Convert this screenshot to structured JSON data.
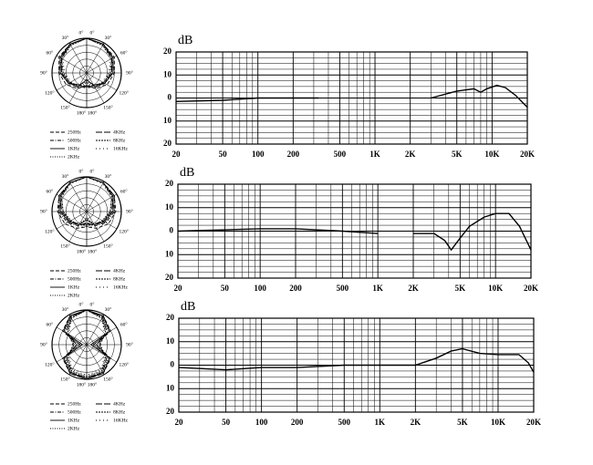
{
  "chart_data": [
    {
      "type": "polar",
      "angles": [
        {
          "value": 0,
          "label": "0°"
        },
        {
          "value": 30,
          "label": "30°"
        },
        {
          "value": 60,
          "label": "60°"
        },
        {
          "value": 90,
          "label": "90°"
        },
        {
          "value": 120,
          "label": "120°"
        },
        {
          "value": 150,
          "label": "150°"
        },
        {
          "value": 180,
          "label": "180°"
        }
      ],
      "rlim": [
        -25,
        0
      ],
      "rgrid": [
        -20,
        -15,
        -10,
        -5,
        0
      ],
      "color": "#000000",
      "series": [
        {
          "name": "250Hz",
          "dash": "dashed",
          "values": [
            0,
            -1,
            -2,
            -5,
            -8,
            -12,
            -16
          ]
        },
        {
          "name": "500Hz",
          "dash": "dashdot",
          "values": [
            0,
            -1,
            -3,
            -6,
            -10,
            -14,
            -18
          ]
        },
        {
          "name": "1KHz",
          "dash": "solid",
          "values": [
            0,
            -1,
            -3,
            -6,
            -10,
            -15,
            -20
          ]
        },
        {
          "name": "2KHz",
          "dash": "dotted",
          "values": [
            0,
            -1,
            -3,
            -7,
            -11,
            -15,
            -19
          ]
        },
        {
          "name": "4KHz",
          "dash": "longdash",
          "values": [
            0,
            -1,
            -4,
            -7,
            -10,
            -13,
            -15
          ]
        },
        {
          "name": "8KHz",
          "dash": "dense",
          "values": [
            0,
            -2,
            -4,
            -8,
            -11,
            -14,
            -16
          ]
        },
        {
          "name": "16KHz",
          "dash": "sparse",
          "values": [
            0,
            -2,
            -5,
            -9,
            -12,
            -13,
            -14
          ]
        }
      ]
    },
    {
      "type": "line",
      "ylabel": "dB",
      "xlog": true,
      "xlim": [
        20,
        20000
      ],
      "ylim": [
        -20,
        20
      ],
      "xticks": [
        20,
        50,
        100,
        200,
        500,
        {
          "value": 1000,
          "label": "1K"
        },
        {
          "value": 2000,
          "label": "2K"
        },
        {
          "value": 5000,
          "label": "5K"
        },
        {
          "value": 10000,
          "label": "10K"
        },
        {
          "value": 20000,
          "label": "20K"
        }
      ],
      "yticks": [
        20,
        10,
        0,
        {
          "value": -10,
          "label": "10"
        },
        {
          "value": -20,
          "label": "20"
        }
      ],
      "xgrid": [
        30,
        40,
        60,
        70,
        80,
        90,
        300,
        400,
        600,
        700,
        800,
        900,
        3000,
        4000,
        6000,
        7000,
        8000,
        9000
      ],
      "ygrid": [
        17.5,
        15,
        12.5,
        7.5,
        5,
        2.5,
        -2.5,
        -5,
        -7.5,
        -12.5,
        -15,
        -17.5
      ],
      "series": [
        {
          "color": "#000000",
          "x": [
            20,
            50,
            100,
            200,
            330,
            1000,
            3000,
            5000,
            7000,
            8000,
            9000,
            11000,
            13000,
            16000,
            20000
          ],
          "values": [
            -1.5,
            -1,
            0,
            0,
            0,
            null,
            0,
            3,
            4,
            2.5,
            4,
            5.5,
            4.5,
            1,
            -4
          ]
        }
      ]
    },
    {
      "type": "polar",
      "angles": [
        {
          "value": 0,
          "label": "0°"
        },
        {
          "value": 30,
          "label": "30°"
        },
        {
          "value": 60,
          "label": "60°"
        },
        {
          "value": 90,
          "label": "90°"
        },
        {
          "value": 120,
          "label": "120°"
        },
        {
          "value": 150,
          "label": "150°"
        },
        {
          "value": 180,
          "label": "180°"
        }
      ],
      "rlim": [
        -25,
        0
      ],
      "rgrid": [
        -20,
        -15,
        -10,
        -5,
        0
      ],
      "color": "#000000",
      "series": [
        {
          "name": "250Hz",
          "dash": "dashed",
          "values": [
            0,
            -1,
            -2,
            -4,
            -7,
            -11,
            -14
          ]
        },
        {
          "name": "500Hz",
          "dash": "dashdot",
          "values": [
            0,
            -1,
            -2,
            -5,
            -9,
            -13,
            -17
          ]
        },
        {
          "name": "1KHz",
          "dash": "solid",
          "values": [
            0,
            -1,
            -3,
            -6,
            -10,
            -14,
            -19
          ]
        },
        {
          "name": "2KHz",
          "dash": "dotted",
          "values": [
            0,
            -1,
            -3,
            -6,
            -11,
            -15,
            -20
          ]
        },
        {
          "name": "4KHz",
          "dash": "longdash",
          "values": [
            0,
            -1,
            -3,
            -7,
            -11,
            -14,
            -16
          ]
        },
        {
          "name": "8KHz",
          "dash": "dense",
          "values": [
            0,
            -1,
            -4,
            -8,
            -12,
            -14,
            -15
          ]
        },
        {
          "name": "16KHz",
          "dash": "sparse",
          "values": [
            0,
            -2,
            -4,
            -8,
            -11,
            -13,
            -14
          ]
        }
      ]
    },
    {
      "type": "line",
      "ylabel": "dB",
      "xlog": true,
      "xlim": [
        20,
        20000
      ],
      "ylim": [
        -20,
        20
      ],
      "xticks": [
        20,
        50,
        100,
        200,
        500,
        {
          "value": 1000,
          "label": "1K"
        },
        {
          "value": 2000,
          "label": "2K"
        },
        {
          "value": 5000,
          "label": "5K"
        },
        {
          "value": 10000,
          "label": "10K"
        },
        {
          "value": 20000,
          "label": "20K"
        }
      ],
      "yticks": [
        20,
        10,
        0,
        {
          "value": -10,
          "label": "10"
        },
        {
          "value": -20,
          "label": "20"
        }
      ],
      "xgrid": [
        30,
        40,
        60,
        70,
        80,
        90,
        300,
        400,
        600,
        700,
        800,
        900,
        3000,
        4000,
        6000,
        7000,
        8000,
        9000
      ],
      "ygrid": [
        17.5,
        15,
        12.5,
        7.5,
        5,
        2.5,
        -2.5,
        -5,
        -7.5,
        -12.5,
        -15,
        -17.5
      ],
      "series": [
        {
          "color": "#000000",
          "x": [
            20,
            100,
            200,
            500,
            1000,
            1500,
            2000,
            3000,
            3700,
            4200,
            5000,
            6000,
            8000,
            10000,
            13000,
            16000,
            20000
          ],
          "values": [
            0,
            1,
            1,
            0,
            -1,
            null,
            -1,
            -1,
            -4,
            -8,
            -3,
            2,
            6,
            7.5,
            7.5,
            2,
            -8
          ]
        }
      ]
    },
    {
      "type": "polar",
      "angles": [
        {
          "value": 0,
          "label": "0°"
        },
        {
          "value": 30,
          "label": "30°"
        },
        {
          "value": 60,
          "label": "60°"
        },
        {
          "value": 90,
          "label": "90°"
        },
        {
          "value": 120,
          "label": "120°"
        },
        {
          "value": 150,
          "label": "150°"
        },
        {
          "value": 180,
          "label": "180°"
        }
      ],
      "rlim": [
        -25,
        0
      ],
      "rgrid": [
        -20,
        -15,
        -10,
        -5,
        0
      ],
      "color": "#000000",
      "series": [
        {
          "name": "250Hz",
          "dash": "dashed",
          "values": [
            0,
            -1,
            -5,
            -18,
            -5,
            -1,
            0
          ]
        },
        {
          "name": "500Hz",
          "dash": "dashdot",
          "values": [
            0,
            -1,
            -6,
            -20,
            -6,
            -1,
            0
          ]
        },
        {
          "name": "1KHz",
          "dash": "solid",
          "values": [
            0,
            -1,
            -6,
            -22,
            -6,
            -1,
            -1
          ]
        },
        {
          "name": "2KHz",
          "dash": "dotted",
          "values": [
            0,
            -2,
            -7,
            -20,
            -7,
            -2,
            -1
          ]
        },
        {
          "name": "4KHz",
          "dash": "longdash",
          "values": [
            0,
            -2,
            -8,
            -18,
            -8,
            -2,
            -1
          ]
        },
        {
          "name": "8KHz",
          "dash": "dense",
          "values": [
            0,
            -3,
            -9,
            -16,
            -9,
            -3,
            -2
          ]
        },
        {
          "name": "16KHz",
          "dash": "sparse",
          "values": [
            0,
            -3,
            -10,
            -15,
            -10,
            -4,
            -3
          ]
        }
      ]
    },
    {
      "type": "line",
      "ylabel": "dB",
      "xlog": true,
      "xlim": [
        20,
        20000
      ],
      "ylim": [
        -20,
        20
      ],
      "xticks": [
        20,
        50,
        100,
        200,
        500,
        {
          "value": 1000,
          "label": "1K"
        },
        {
          "value": 2000,
          "label": "2K"
        },
        {
          "value": 5000,
          "label": "5K"
        },
        {
          "value": 10000,
          "label": "10K"
        },
        {
          "value": 20000,
          "label": "20K"
        }
      ],
      "yticks": [
        20,
        10,
        0,
        {
          "value": -10,
          "label": "10"
        },
        {
          "value": -20,
          "label": "20"
        }
      ],
      "xgrid": [
        30,
        40,
        60,
        70,
        80,
        90,
        300,
        400,
        600,
        700,
        800,
        900,
        3000,
        4000,
        6000,
        7000,
        8000,
        9000
      ],
      "ygrid": [
        17.5,
        15,
        12.5,
        7.5,
        5,
        2.5,
        -2.5,
        -5,
        -7.5,
        -12.5,
        -15,
        -17.5
      ],
      "series": [
        {
          "color": "#000000",
          "x": [
            20,
            50,
            100,
            200,
            500,
            1000,
            2000,
            3000,
            4000,
            5000,
            7000,
            10000,
            15000,
            18000,
            20000
          ],
          "values": [
            -1,
            -2,
            -1,
            -1,
            0,
            0,
            0,
            3,
            6,
            7,
            5,
            4.5,
            4.5,
            1,
            -3
          ]
        }
      ]
    }
  ]
}
